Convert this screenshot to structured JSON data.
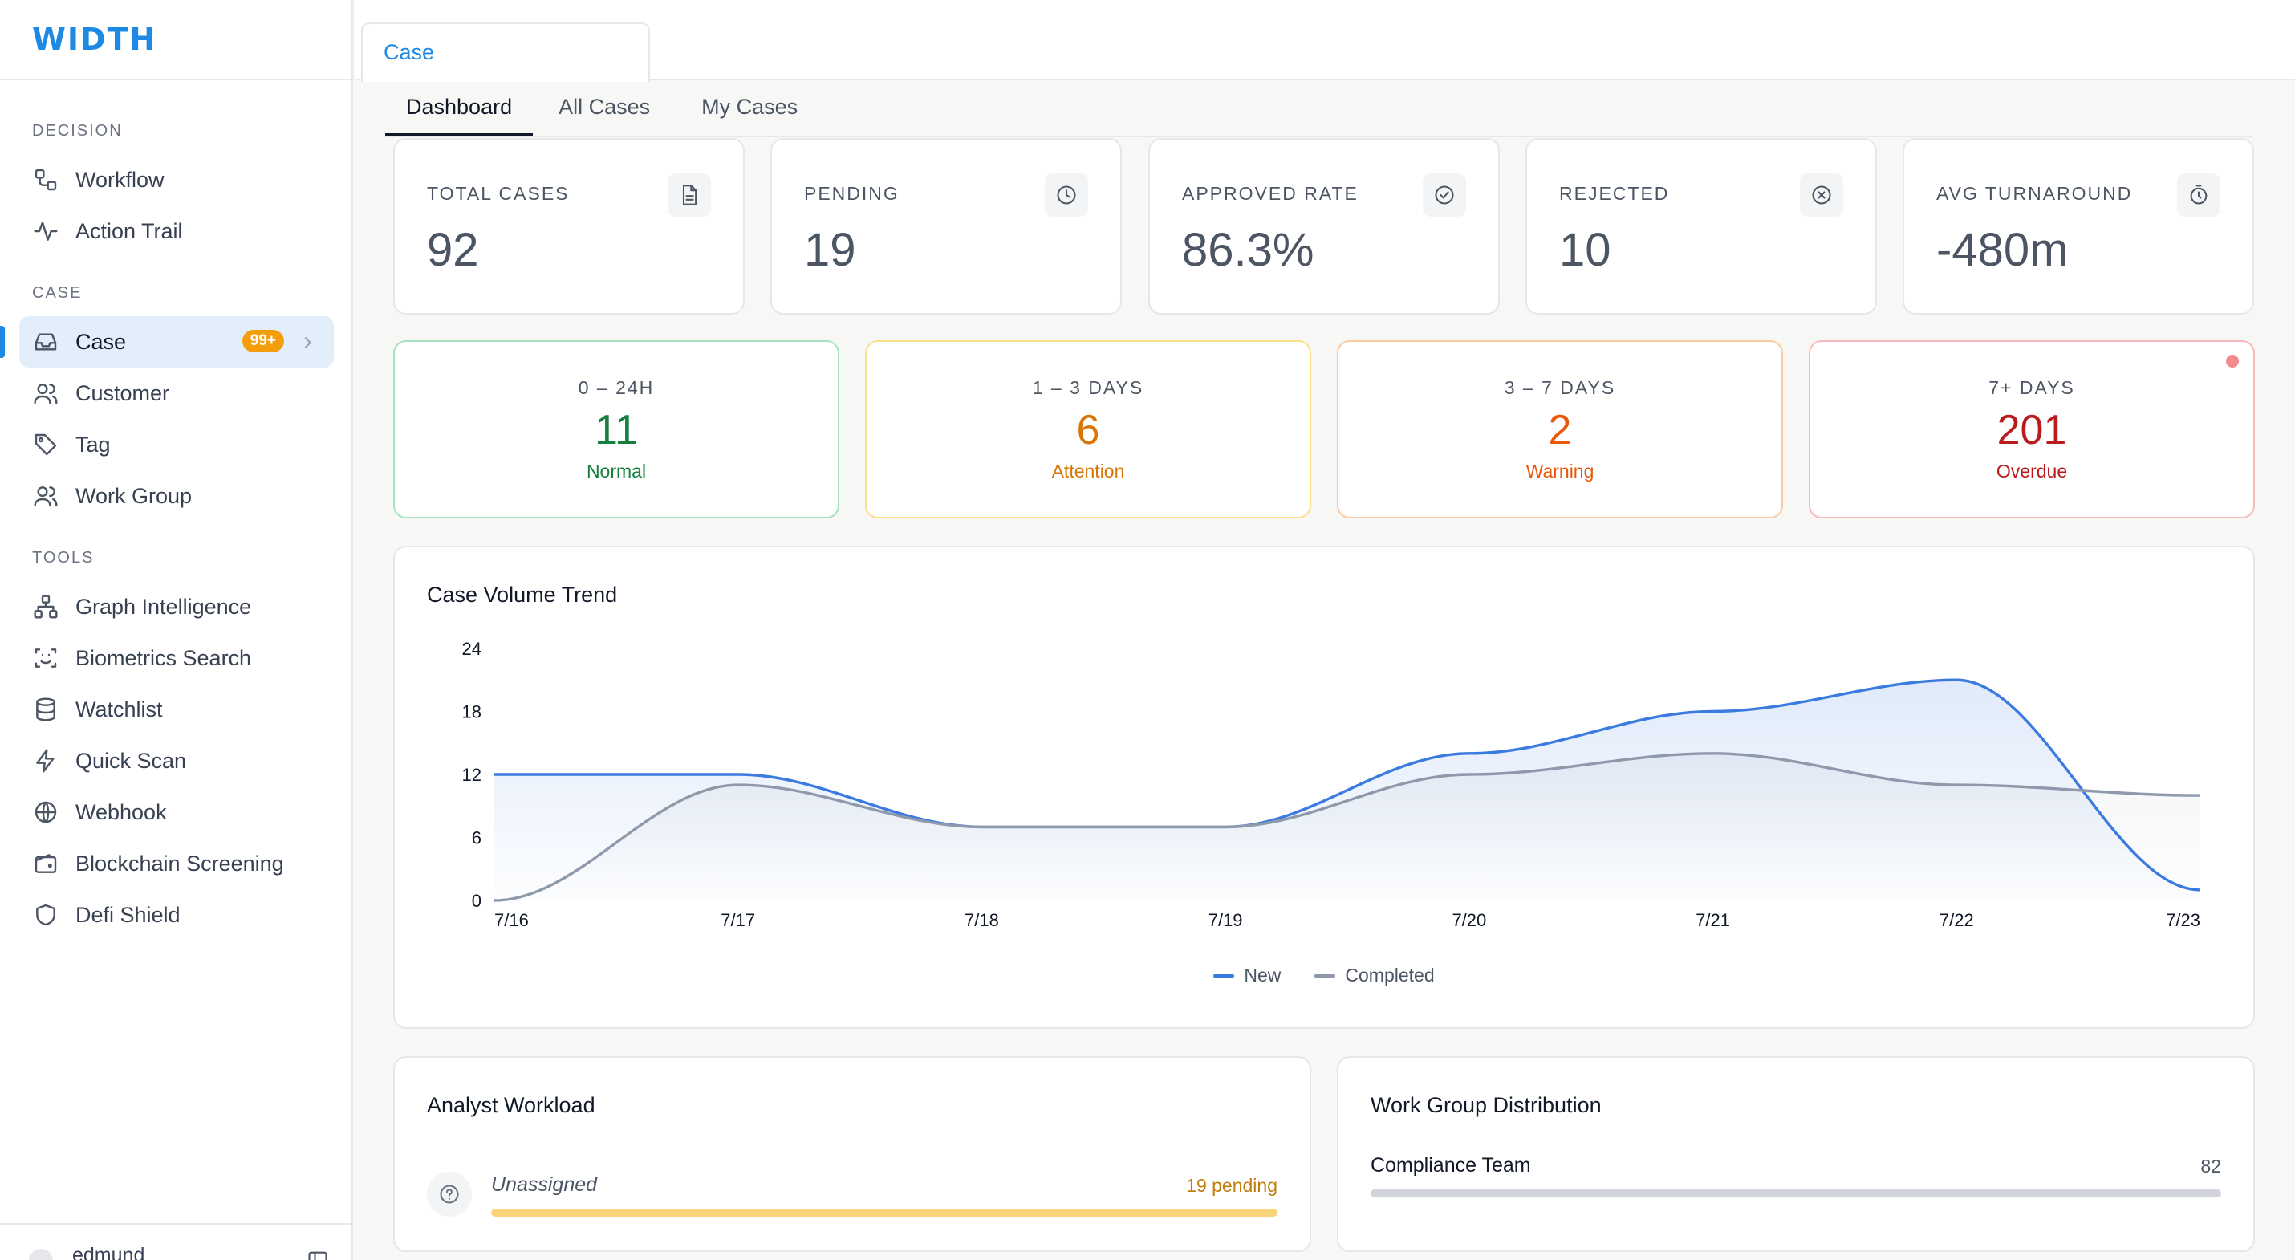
{
  "app": {
    "logo": "WIDTH"
  },
  "sidebar": {
    "sections": {
      "decision": "DECISION",
      "case": "CASE",
      "tools": "TOOLS"
    },
    "items": {
      "workflow": "Workflow",
      "action_trail": "Action Trail",
      "case": "Case",
      "customer": "Customer",
      "tag": "Tag",
      "work_group": "Work Group",
      "graph_intelligence": "Graph Intelligence",
      "biometrics_search": "Biometrics Search",
      "watchlist": "Watchlist",
      "quick_scan": "Quick Scan",
      "webhook": "Webhook",
      "blockchain_screening": "Blockchain Screening",
      "defi_shield": "Defi Shield"
    },
    "case_badge": "99+",
    "user_name": "edmund"
  },
  "topbar": {
    "open_tab": "Case"
  },
  "subtabs": {
    "dashboard": "Dashboard",
    "all_cases": "All Cases",
    "my_cases": "My Cases"
  },
  "stats": {
    "total_cases": {
      "label": "TOTAL CASES",
      "value": "92"
    },
    "pending": {
      "label": "PENDING",
      "value": "19"
    },
    "approved_rate": {
      "label": "APPROVED RATE",
      "value": "86.3%"
    },
    "rejected": {
      "label": "REJECTED",
      "value": "10"
    },
    "avg_turnaround": {
      "label": "AVG TURNAROUND",
      "value": "-480m"
    }
  },
  "aging": {
    "normal": {
      "label": "0 – 24H",
      "value": "11",
      "status": "Normal"
    },
    "attention": {
      "label": "1 – 3 DAYS",
      "value": "6",
      "status": "Attention"
    },
    "warning": {
      "label": "3 – 7 DAYS",
      "value": "2",
      "status": "Warning"
    },
    "overdue": {
      "label": "7+ DAYS",
      "value": "201",
      "status": "Overdue"
    }
  },
  "colors": {
    "accent": "#1e88e5",
    "normal": "#15803d",
    "attention": "#d97706",
    "warning": "#ea580c",
    "overdue": "#b91c1c"
  },
  "trend": {
    "title": "Case Volume Trend"
  },
  "chart_data": {
    "type": "area",
    "title": "Case Volume Trend",
    "categories": [
      "7/16",
      "7/17",
      "7/18",
      "7/19",
      "7/20",
      "7/21",
      "7/22",
      "7/23"
    ],
    "y_ticks": [
      "0",
      "6",
      "12",
      "18",
      "24"
    ],
    "ylim": [
      0,
      24
    ],
    "grid": false,
    "legend_position": "bottom",
    "series": [
      {
        "name": "New",
        "color": "#3b7be0",
        "values": [
          12,
          12,
          7,
          7,
          14,
          18,
          21,
          1
        ]
      },
      {
        "name": "Completed",
        "color": "#8e9aab",
        "values": [
          0,
          11,
          7,
          7,
          12,
          14,
          11,
          10
        ]
      }
    ]
  },
  "workload": {
    "title": "Analyst Workload",
    "analyst": "Unassigned",
    "pending_text": "19 pending",
    "fill_fraction": 1.0
  },
  "workgroup": {
    "title": "Work Group Distribution",
    "name": "Compliance Team",
    "count": "82",
    "fill_fraction": 1.0
  }
}
